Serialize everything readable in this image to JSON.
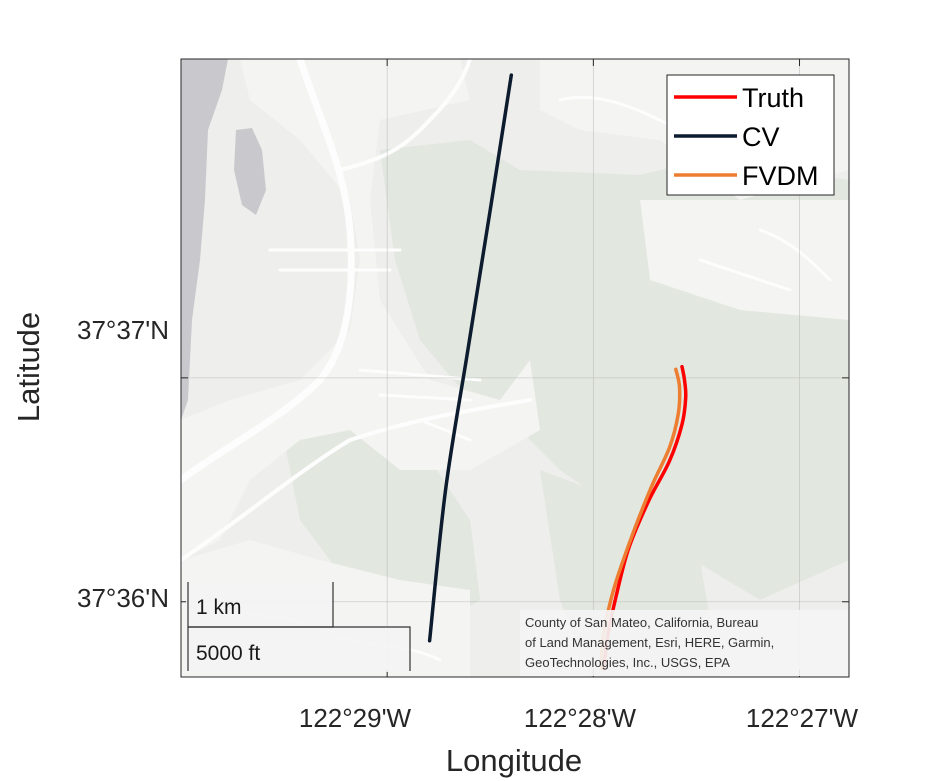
{
  "axes": {
    "xlabel": "Longitude",
    "ylabel": "Latitude",
    "xticks": [
      "122°29'W",
      "122°28'W",
      "122°27'W"
    ],
    "yticks": [
      "37°37'N",
      "37°36'N"
    ]
  },
  "legend": {
    "placement": "top-right",
    "entries": [
      {
        "label": "Truth",
        "color": "#ff0000"
      },
      {
        "label": "CV",
        "color": "#0d1b2e"
      },
      {
        "label": "FVDM",
        "color": "#ed7d31"
      }
    ]
  },
  "scalebar": {
    "metric": "1 km",
    "imperial": "5000 ft"
  },
  "attribution": [
    "County of San Mateo, California, Bureau",
    "of Land Management, Esri, HERE, Garmin,",
    "GeoTechnologies, Inc., USGS, EPA"
  ],
  "basemap": {
    "land_color": "#eeeeec",
    "park_color": "#e2e7df",
    "water_color": "#c9c9cd",
    "road_color": "#fdfdfd"
  },
  "chart_data": {
    "type": "line",
    "xlabel": "Longitude",
    "ylabel": "Latitude",
    "xlim": [
      -122.5,
      -122.446
    ],
    "ylim": [
      37.5944,
      37.6404
    ],
    "grid": true,
    "series": [
      {
        "name": "Truth",
        "x": [
          -122.4595,
          -122.4593,
          -122.4592,
          -122.4595,
          -122.4605,
          -122.4622,
          -122.4638,
          -122.4648,
          -122.4655,
          -122.4657,
          -122.4658
        ],
        "y": [
          37.6175,
          37.6165,
          37.6152,
          37.6132,
          37.6105,
          37.6075,
          37.604,
          37.6005,
          37.5975,
          37.596,
          37.595
        ]
      },
      {
        "name": "CV",
        "x": [
          -122.4733,
          -122.475,
          -122.4768,
          -122.4786,
          -122.4799
        ],
        "y": [
          37.6392,
          37.6292,
          37.6188,
          37.6084,
          37.5971
        ]
      },
      {
        "name": "FVDM",
        "x": [
          -122.46,
          -122.4597,
          -122.4598,
          -122.4605,
          -122.462,
          -122.4637,
          -122.465,
          -122.4658,
          -122.466,
          -122.466
        ],
        "y": [
          37.6173,
          37.616,
          37.614,
          37.6115,
          37.6085,
          37.6045,
          37.601,
          37.5978,
          37.596,
          37.595
        ]
      }
    ]
  }
}
